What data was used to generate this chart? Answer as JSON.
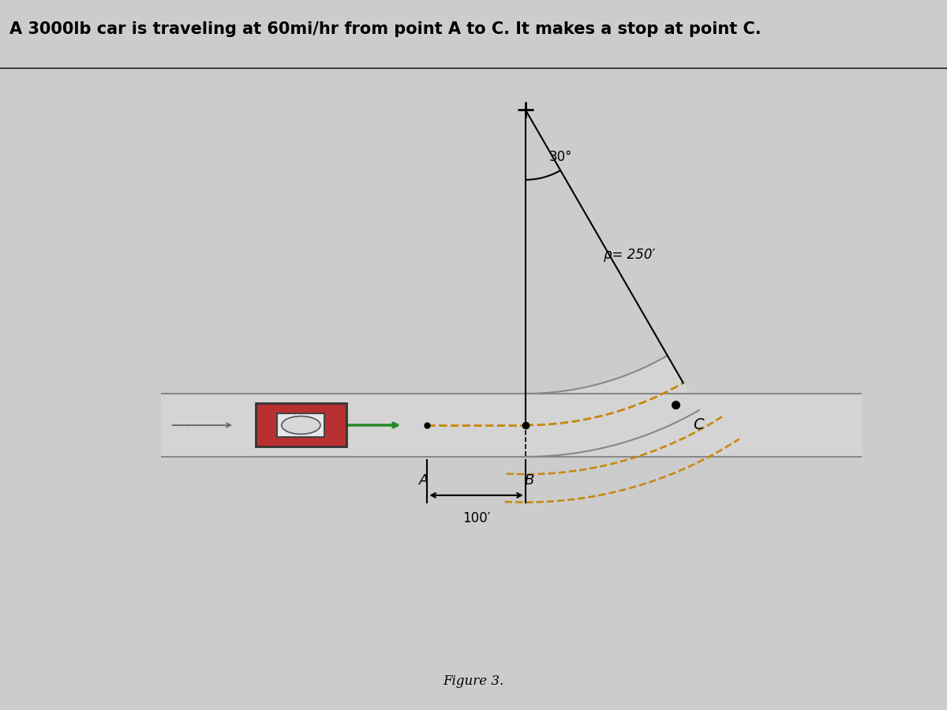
{
  "title": "A 3000lb car is traveling at 60mi/hr from point A to C. It makes a stop at point C.",
  "figure_label": "Figure 3.",
  "bg_color": "#b8c9a0",
  "road_color": "#d4d4d4",
  "road_border_color": "#888888",
  "rho_label": "ρ= 250′",
  "angle_label": "30°",
  "dist_label": "100′",
  "point_A": "A",
  "point_B": "B",
  "point_C": "C",
  "title_fontsize": 15,
  "label_fontsize": 13,
  "fig_label_fontsize": 12,
  "outer_bg": "#cccccc",
  "diagram_bg": "#b8c9a0"
}
